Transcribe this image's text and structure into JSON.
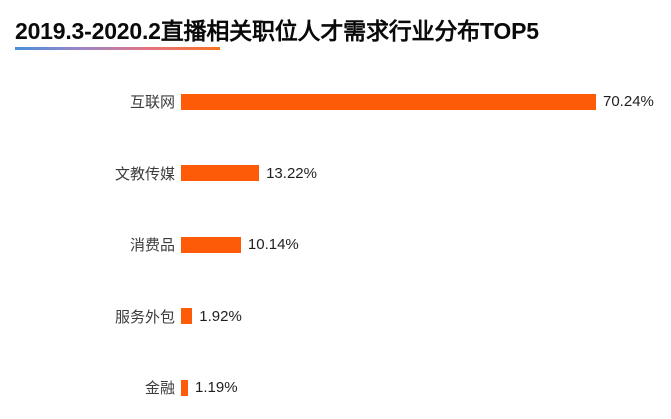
{
  "header": {
    "title": "2019.3-2020.2直播相关职位人才需求行业分布TOP5"
  },
  "chart_data": {
    "type": "bar",
    "orientation": "horizontal",
    "title": "2019.3-2020.2直播相关职位人才需求行业分布TOP5",
    "categories": [
      "互联网",
      "文教传媒",
      "消费品",
      "服务外包",
      "金融"
    ],
    "values": [
      70.24,
      13.22,
      10.14,
      1.92,
      1.19
    ],
    "value_labels": [
      "70.24%",
      "13.22%",
      "10.14%",
      "1.92%",
      "1.19%"
    ],
    "unit": "%",
    "xlim": [
      0,
      75
    ],
    "grid": false,
    "legend": false,
    "value_label_position": "right-of-bar"
  },
  "colors": {
    "bar": "#fd5b08",
    "title": "#0a0a0a",
    "category_label": "#3c3c3c",
    "value_label": "#1f1f1f",
    "background": "#ffffff",
    "underline_gradient": [
      "#4a90d9",
      "#9d85c6",
      "#e6737e",
      "#f8721f"
    ]
  }
}
